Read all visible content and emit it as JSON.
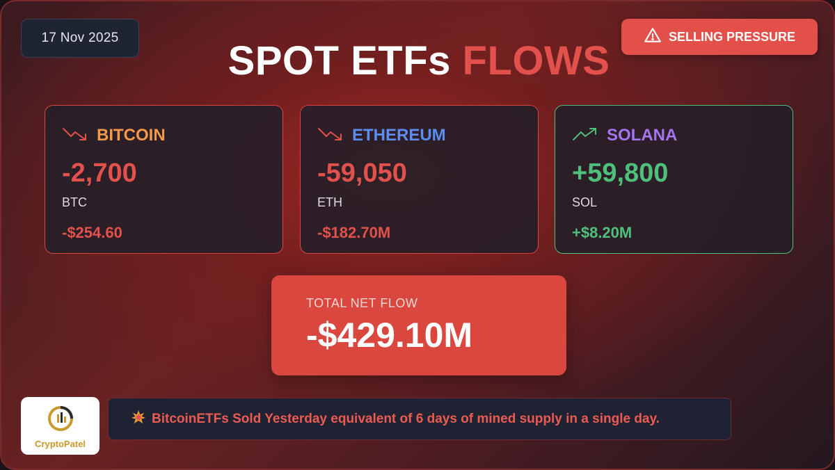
{
  "date": "17 Nov 2025",
  "badge": {
    "label": "SELLING PRESSURE",
    "icon": "warning-icon"
  },
  "title": {
    "main": "SPOT ETFs",
    "accent": "FLOWS"
  },
  "cards": [
    {
      "name": "BITCOIN",
      "amount": "-2,700",
      "unit": "BTC",
      "usd": "-$254.60",
      "trend": "down",
      "name_color": "#f2994a"
    },
    {
      "name": "ETHEREUM",
      "amount": "-59,050",
      "unit": "ETH",
      "usd": "-$182.70M",
      "trend": "down",
      "name_color": "#5c8df0"
    },
    {
      "name": "SOLANA",
      "amount": "+59,800",
      "unit": "SOL",
      "usd": "+$8.20M",
      "trend": "up",
      "name_color": "#a576f0"
    }
  ],
  "total": {
    "label": "TOTAL NET FLOW",
    "value": "-$429.10M"
  },
  "logo": {
    "text": "CryptoPatel"
  },
  "note": {
    "text": "BitcoinETFs Sold Yesterday equivalent of 6 days of mined supply in a single day.",
    "icon": "explosion-icon"
  },
  "colors": {
    "negative": "#e2514b",
    "positive": "#4fc07c",
    "badge": "#e35049",
    "total_bg": "#d9473f"
  }
}
